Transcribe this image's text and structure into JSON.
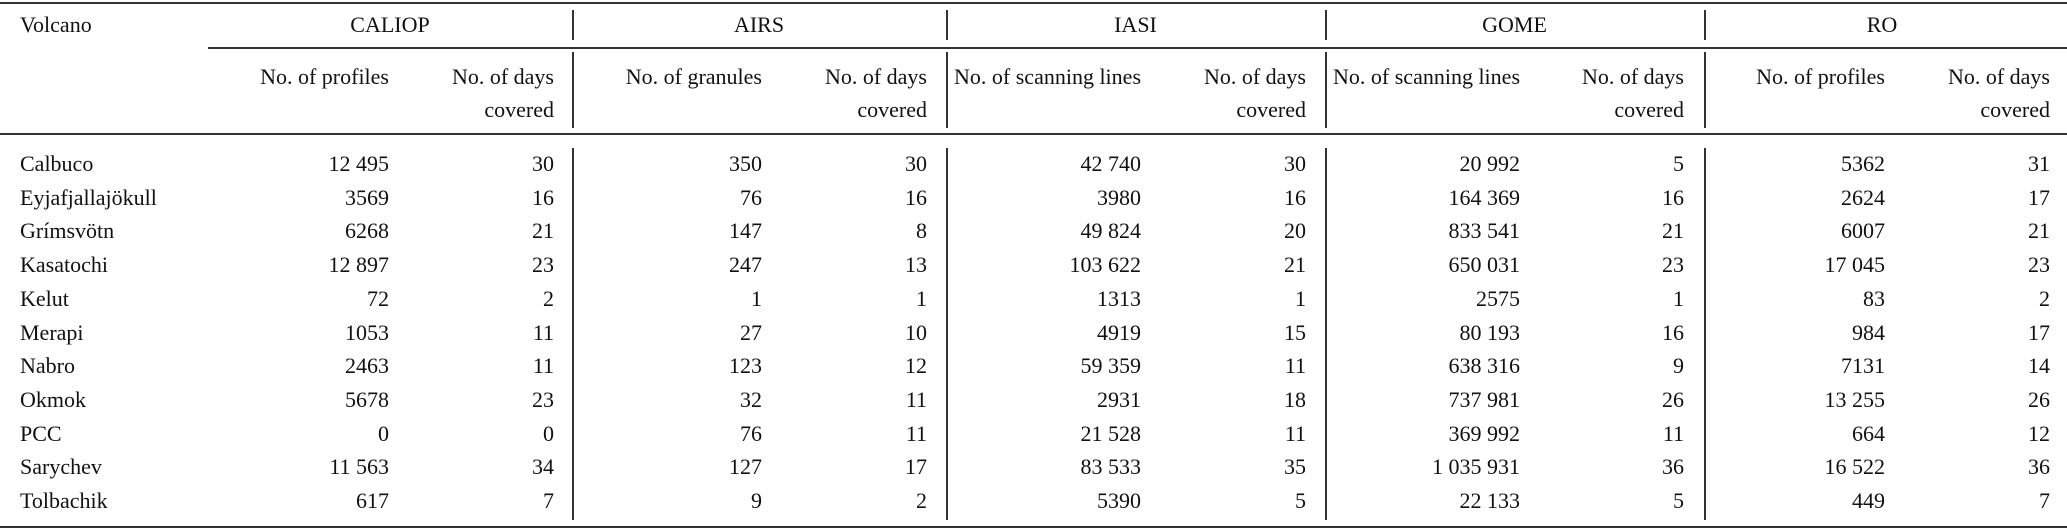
{
  "table": {
    "header": {
      "volcano": "Volcano",
      "groups": [
        "CALIOP",
        "AIRS",
        "IASI",
        "GOME",
        "RO"
      ],
      "subheaders": [
        "No. of profiles",
        "No. of days covered",
        "No. of granules",
        "No. of days covered",
        "No. of scanning lines",
        "No. of days covered",
        "No. of scanning lines",
        "No. of days covered",
        "No. of profiles",
        "No. of days covered"
      ]
    },
    "rows": [
      [
        "Calbuco",
        "12 495",
        "30",
        "350",
        "30",
        "42 740",
        "30",
        "20 992",
        "5",
        "5362",
        "31"
      ],
      [
        "Eyjafjallajökull",
        "3569",
        "16",
        "76",
        "16",
        "3980",
        "16",
        "164 369",
        "16",
        "2624",
        "17"
      ],
      [
        "Grímsvötn",
        "6268",
        "21",
        "147",
        "8",
        "49 824",
        "20",
        "833 541",
        "21",
        "6007",
        "21"
      ],
      [
        "Kasatochi",
        "12 897",
        "23",
        "247",
        "13",
        "103 622",
        "21",
        "650 031",
        "23",
        "17 045",
        "23"
      ],
      [
        "Kelut",
        "72",
        "2",
        "1",
        "1",
        "1313",
        "1",
        "2575",
        "1",
        "83",
        "2"
      ],
      [
        "Merapi",
        "1053",
        "11",
        "27",
        "10",
        "4919",
        "15",
        "80 193",
        "16",
        "984",
        "17"
      ],
      [
        "Nabro",
        "2463",
        "11",
        "123",
        "12",
        "59 359",
        "11",
        "638 316",
        "9",
        "7131",
        "14"
      ],
      [
        "Okmok",
        "5678",
        "23",
        "32",
        "11",
        "2931",
        "18",
        "737 981",
        "26",
        "13 255",
        "26"
      ],
      [
        "PCC",
        "0",
        "0",
        "76",
        "11",
        "21 528",
        "11",
        "369 992",
        "11",
        "664",
        "12"
      ],
      [
        "Sarychev",
        "11 563",
        "34",
        "127",
        "17",
        "83 533",
        "35",
        "1 035 931",
        "36",
        "16 522",
        "36"
      ],
      [
        "Tolbachik",
        "617",
        "7",
        "9",
        "2",
        "5390",
        "5",
        "22 133",
        "5",
        "449",
        "7"
      ]
    ]
  }
}
